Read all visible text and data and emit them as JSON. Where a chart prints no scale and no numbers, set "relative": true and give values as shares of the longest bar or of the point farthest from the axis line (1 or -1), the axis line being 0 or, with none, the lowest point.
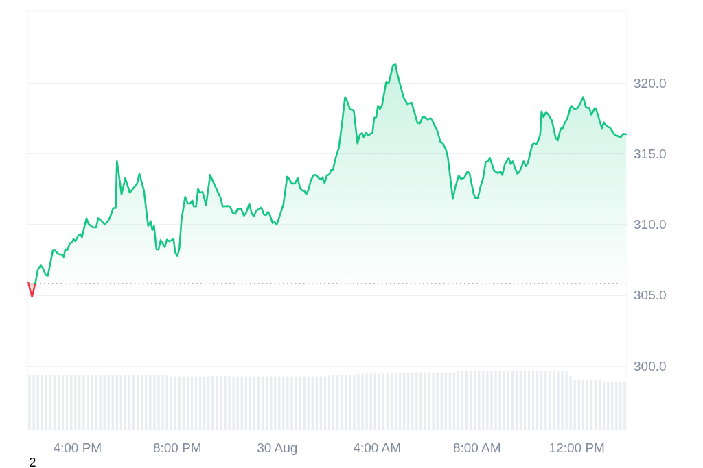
{
  "chart_data": [
    {
      "type": "area",
      "series": [
        {
          "color": "#ea3943",
          "x": [
            "--08-29T14:02",
            "--08-29T14:11",
            "--08-29T14:19"
          ],
          "values": [
            305.87,
            304.89,
            305.87
          ]
        },
        {
          "color": "#16c784",
          "x": [
            "--08-29T14:19",
            "--08-29T14:25",
            "--08-29T14:32",
            "--08-29T14:37",
            "--08-29T14:44",
            "--08-29T14:49",
            "--08-29T15:01",
            "--08-29T15:06",
            "--08-29T15:14",
            "--08-29T15:23",
            "--08-29T15:27",
            "--08-29T15:31",
            "--08-29T15:36",
            "--08-29T15:42",
            "--08-29T15:47",
            "--08-29T15:51",
            "--08-29T15:55",
            "--08-29T16:02",
            "--08-29T16:08",
            "--08-29T16:11",
            "--08-29T16:16",
            "--08-29T16:22",
            "--08-29T16:27",
            "--08-29T16:37",
            "--08-29T16:45",
            "--08-29T16:50",
            "--08-29T16:57",
            "--08-29T17:06",
            "--08-29T17:15",
            "--08-29T17:21",
            "--08-29T17:26",
            "--08-29T17:32",
            "--08-29T17:35",
            "--08-29T17:40",
            "--08-29T17:46",
            "--08-29T17:55",
            "--08-29T18:06",
            "--08-29T18:16",
            "--08-29T18:23",
            "--08-29T18:29",
            "--08-29T18:40",
            "--08-29T18:50",
            "--08-29T18:56",
            "--08-29T19:00",
            "--08-29T19:04",
            "--08-29T19:10",
            "--08-29T19:15",
            "--08-29T19:20",
            "--08-29T19:30",
            "--08-29T19:35",
            "--08-29T19:41",
            "--08-29T19:51",
            "--08-29T19:55",
            "--08-29T20:00",
            "--08-29T20:05",
            "--08-29T20:10",
            "--08-29T20:19",
            "--08-29T20:25",
            "--08-29T20:31",
            "--08-29T20:36",
            "--08-29T20:40",
            "--08-29T20:45",
            "--08-29T20:50",
            "--08-29T20:54",
            "--08-29T21:01",
            "--08-29T21:09",
            "--08-29T21:19",
            "--08-29T21:28",
            "--08-29T21:44",
            "--08-29T21:49",
            "--08-29T22:01",
            "--08-29T22:07",
            "--08-29T22:13",
            "--08-29T22:19",
            "--08-29T22:25",
            "--08-29T22:34",
            "--08-29T22:40",
            "--08-29T22:45",
            "--08-29T22:53",
            "--08-29T22:59",
            "--08-29T23:04",
            "--08-29T23:10",
            "--08-29T23:22",
            "--08-29T23:28",
            "--08-29T23:33",
            "--08-29T23:38",
            "--08-29T23:43",
            "--08-29T23:49",
            "--08-29T23:54",
            "--08-29T23:59",
            "--08-30T00:08",
            "--08-30T00:15",
            "--08-30T00:24",
            "--08-30T00:29",
            "--08-30T00:35",
            "--08-30T00:43",
            "--08-30T00:49",
            "--08-30T00:55",
            "--08-30T01:00",
            "--08-30T01:05",
            "--08-30T01:10",
            "--08-30T01:15",
            "--08-30T01:21",
            "--08-30T01:28",
            "--08-30T01:33",
            "--08-30T01:41",
            "--08-30T01:46",
            "--08-30T01:49",
            "--08-30T01:54",
            "--08-30T01:59",
            "--08-30T02:05",
            "--08-30T02:10",
            "--08-30T02:14",
            "--08-30T02:21",
            "--08-30T02:28",
            "--08-30T02:36",
            "--08-30T02:43",
            "--08-30T02:48",
            "--08-30T02:55",
            "--08-30T03:04",
            "--08-30T03:13",
            "--08-30T03:19",
            "--08-30T03:24",
            "--08-30T03:28",
            "--08-30T03:34",
            "--08-30T03:39",
            "--08-30T03:49",
            "--08-30T03:53",
            "--08-30T03:58",
            "--08-30T04:02",
            "--08-30T04:07",
            "--08-30T04:12",
            "--08-30T04:22",
            "--08-30T04:28",
            "--08-30T04:38",
            "--08-30T04:44",
            "--08-30T04:48",
            "--08-30T04:55",
            "--08-30T05:04",
            "--08-30T05:13",
            "--08-30T05:23",
            "--08-30T05:37",
            "--08-30T05:43",
            "--08-30T05:49",
            "--08-30T05:54",
            "--08-30T06:02",
            "--08-30T06:08",
            "--08-30T06:12",
            "--08-30T06:19",
            "--08-30T06:24",
            "--08-30T06:32",
            "--08-30T06:38",
            "--08-30T06:45",
            "--08-30T06:50",
            "--08-30T06:56",
            "--08-30T07:02",
            "--08-30T07:08",
            "--08-30T07:16",
            "--08-30T07:22",
            "--08-30T07:30",
            "--08-30T07:37",
            "--08-30T07:42",
            "--08-30T07:52",
            "--08-30T07:56",
            "--08-30T08:02",
            "--08-30T08:08",
            "--08-30T08:15",
            "--08-30T08:21",
            "--08-30T08:26",
            "--08-30T08:31",
            "--08-30T08:41",
            "--08-30T08:50",
            "--08-30T08:57",
            "--08-30T09:01",
            "--08-30T09:07",
            "--08-30T09:16",
            "--08-30T09:21",
            "--08-30T09:26",
            "--08-30T09:31",
            "--08-30T09:37",
            "--08-30T09:42",
            "--08-30T09:52",
            "--08-30T09:57",
            "--08-30T10:02",
            "--08-30T10:07",
            "--08-30T10:13",
            "--08-30T10:18",
            "--08-30T10:23",
            "--08-30T10:29",
            "--08-30T10:32",
            "--08-30T10:35",
            "--08-30T10:40",
            "--08-30T10:46",
            "--08-30T10:53",
            "--08-30T11:00",
            "--08-30T11:09",
            "--08-30T11:14",
            "--08-30T11:21",
            "--08-30T11:26",
            "--08-30T11:32",
            "--08-30T11:37",
            "--08-30T11:44",
            "--08-30T11:47",
            "--08-30T11:54",
            "--08-30T12:02",
            "--08-30T12:08",
            "--08-30T12:15",
            "--08-30T12:22",
            "--08-30T12:30",
            "--08-30T12:35",
            "--08-30T12:43",
            "--08-30T12:46",
            "--08-30T12:53",
            "--08-30T13:00",
            "--08-30T13:05",
            "--08-30T13:12",
            "--08-30T13:19",
            "--08-30T13:31",
            "--08-30T13:38",
            "--08-30T13:45",
            "--08-30T13:52",
            "--08-30T13:58"
          ],
          "values": [
            305.87,
            306.83,
            307.12,
            306.91,
            306.42,
            306.38,
            308.17,
            308.17,
            307.93,
            307.88,
            307.72,
            308.25,
            308.2,
            308.69,
            308.74,
            308.97,
            308.82,
            309.21,
            309.31,
            309.1,
            309.74,
            310.44,
            310.03,
            309.79,
            309.79,
            310.44,
            310.27,
            310.01,
            310.31,
            310.71,
            311.17,
            311.17,
            314.48,
            313.46,
            312.12,
            313.27,
            312.25,
            312.62,
            312.86,
            313.59,
            312.38,
            309.9,
            310.23,
            309.61,
            309.9,
            308.24,
            308.24,
            308.9,
            308.41,
            308.93,
            308.82,
            308.97,
            308.05,
            307.77,
            308.29,
            310.31,
            311.96,
            311.49,
            311.49,
            311.69,
            311.28,
            311.28,
            312.52,
            312.25,
            312.3,
            311.36,
            313.51,
            312.9,
            311.89,
            311.28,
            311.31,
            311.28,
            310.83,
            310.74,
            311.12,
            311.08,
            310.63,
            310.79,
            311.49,
            310.76,
            310.58,
            310.98,
            311.2,
            310.71,
            310.66,
            310.9,
            310.63,
            310.1,
            310.18,
            309.99,
            310.79,
            311.44,
            313.38,
            313.22,
            312.9,
            312.9,
            313.3,
            312.57,
            312.41,
            312.38,
            312.14,
            312.46,
            313.14,
            313.5,
            313.51,
            313.25,
            313.17,
            313.33,
            312.93,
            313.46,
            313.54,
            313.87,
            313.87,
            314.76,
            315.4,
            317.18,
            319.01,
            318.72,
            318.16,
            318.08,
            315.73,
            316.38,
            316.46,
            316.18,
            316.49,
            316.3,
            316.5,
            317.54,
            317.59,
            318.4,
            318.16,
            318.45,
            320.1,
            319.99,
            321.23,
            321.36,
            320.74,
            319.94,
            318.97,
            318.51,
            318.61,
            317.18,
            317.15,
            317.59,
            317.59,
            317.43,
            317.51,
            317.43,
            316.94,
            316.7,
            315.86,
            315.73,
            315.33,
            314.76,
            313.3,
            311.81,
            312.65,
            313.46,
            313.22,
            313.33,
            313.75,
            313.63,
            312.17,
            311.89,
            311.84,
            312.62,
            313.3,
            314.43,
            314.47,
            314.71,
            313.82,
            313.63,
            313.74,
            313.5,
            314.27,
            314.72,
            314.27,
            314.47,
            314.03,
            313.59,
            313.71,
            314.47,
            314.16,
            314.31,
            314.95,
            315.65,
            315.77,
            315.7,
            316.05,
            316.38,
            317.99,
            317.59,
            317.96,
            317.7,
            317.35,
            316.13,
            315.94,
            316.78,
            316.81,
            317.27,
            317.48,
            318.24,
            318.4,
            318.16,
            318.24,
            318.56,
            319.01,
            318.28,
            318.24,
            317.76,
            318.24,
            318.18,
            317.51,
            316.81,
            317.22,
            316.94,
            316.86,
            316.33,
            316.26,
            316.17,
            316.41,
            316.38
          ]
        }
      ],
      "xlim": [
        "--08-29T14:00",
        "--08-30T14:00"
      ],
      "xticks": [
        {
          "value": "--08-29T16:00",
          "label": "4:00 PM"
        },
        {
          "value": "--08-29T20:00",
          "label": "8:00 PM"
        },
        {
          "value": "--08-30T00:00",
          "label": "30 Aug"
        },
        {
          "value": "--08-30T04:00",
          "label": "4:00 AM"
        },
        {
          "value": "--08-30T08:00",
          "label": "8:00 AM"
        },
        {
          "value": "--08-30T12:00",
          "label": "12:00 PM"
        }
      ],
      "ylim": [
        295.5,
        325.1
      ],
      "yticks": [
        {
          "value": 300,
          "label": "300.0"
        },
        {
          "value": 305,
          "label": "305.0"
        },
        {
          "value": 310,
          "label": "310.0"
        },
        {
          "value": 315,
          "label": "315.0"
        },
        {
          "value": 320,
          "label": "320.0"
        }
      ],
      "grid": "y",
      "ref_lines": [
        {
          "axis": "y",
          "value": 305.87,
          "color": "#a6b0c3",
          "line_style": "dotted"
        }
      ],
      "annotations": [
        "2"
      ]
    },
    {
      "type": "bar",
      "relative": true,
      "tick_labels": false,
      "color": "#e9ecf1",
      "categories": [
        null,
        null,
        null,
        null,
        null,
        null,
        null,
        null,
        null,
        null,
        null,
        null,
        null,
        null,
        null,
        null,
        null,
        null,
        null,
        null,
        null,
        null,
        null,
        null,
        null,
        null,
        null,
        null,
        null,
        null,
        null,
        null,
        null,
        null,
        null,
        null,
        null,
        null,
        null,
        null,
        null,
        null,
        null,
        null,
        null,
        null,
        null,
        null,
        null,
        null,
        null,
        null,
        null,
        null,
        null,
        null,
        null,
        null,
        null,
        null,
        null,
        null,
        null,
        null,
        null,
        null,
        null,
        null,
        null,
        null,
        null,
        null,
        null,
        null,
        null,
        null,
        null,
        null,
        null,
        null,
        null,
        null,
        null,
        null,
        null,
        null,
        null,
        null,
        null,
        null,
        null,
        null,
        null,
        null,
        null,
        null,
        null,
        null,
        null,
        null,
        null,
        null,
        null,
        null,
        null,
        null,
        null,
        null,
        null,
        null,
        null,
        null,
        null,
        null,
        null,
        null,
        null,
        null,
        null,
        null,
        null,
        null,
        null,
        null,
        null,
        null,
        null,
        null,
        null,
        null,
        null,
        null,
        null,
        null,
        null,
        null,
        null,
        null,
        null,
        null,
        null,
        null,
        null,
        null
      ],
      "values": [
        0.93,
        0.93,
        0.93,
        0.93,
        0.93,
        0.93,
        0.93,
        0.93,
        0.93,
        0.93,
        0.93,
        0.93,
        0.93,
        0.93,
        0.93,
        0.93,
        0.93,
        0.93,
        0.93,
        0.93,
        0.93,
        0.93,
        0.94,
        0.94,
        0.94,
        0.94,
        0.94,
        0.94,
        0.94,
        0.94,
        0.94,
        0.94,
        0.94,
        0.94,
        0.91,
        0.91,
        0.91,
        0.91,
        0.91,
        0.91,
        0.91,
        0.91,
        0.91,
        0.91,
        0.92,
        0.92,
        0.92,
        0.92,
        0.91,
        0.91,
        0.91,
        0.91,
        0.91,
        0.91,
        0.91,
        0.91,
        0.91,
        0.91,
        0.91,
        0.91,
        0.91,
        0.91,
        0.91,
        0.91,
        0.91,
        0.91,
        0.91,
        0.91,
        0.91,
        0.91,
        0.91,
        0.91,
        0.93,
        0.93,
        0.93,
        0.93,
        0.93,
        0.93,
        0.93,
        0.96,
        0.96,
        0.96,
        0.96,
        0.96,
        0.96,
        0.96,
        0.96,
        0.98,
        0.98,
        0.98,
        0.98,
        0.98,
        0.98,
        0.98,
        0.98,
        0.98,
        0.98,
        0.98,
        0.98,
        0.98,
        0.98,
        0.98,
        0.98,
        1,
        1,
        1,
        1,
        1,
        1,
        1,
        1,
        1,
        1,
        1,
        1,
        1,
        1,
        1,
        1,
        1,
        1,
        1,
        1,
        1,
        1,
        1,
        1,
        1,
        1,
        1,
        0.92,
        0.86,
        0.86,
        0.86,
        0.86,
        0.86,
        0.86,
        0.86,
        0.82,
        0.82,
        0.82,
        0.82,
        0.82,
        0.82
      ]
    }
  ]
}
